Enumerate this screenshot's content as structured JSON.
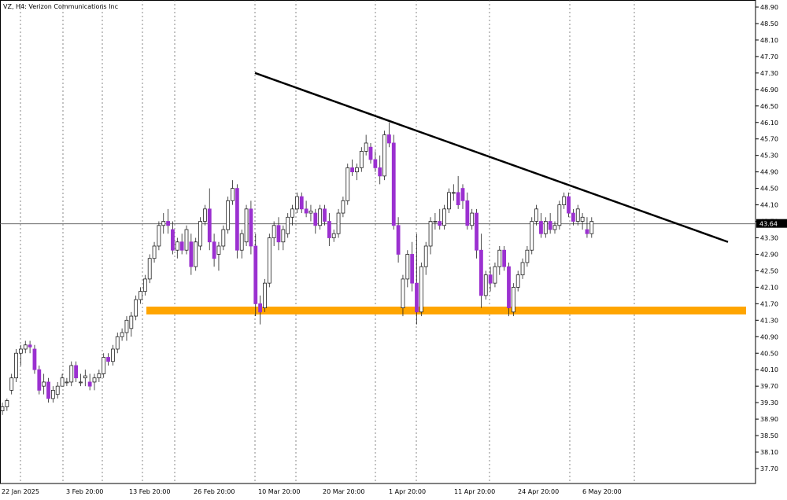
{
  "chart_data": {
    "type": "candlestick",
    "title": "VZ, H4:  Verizon Communications Inc",
    "current_price": "43.64",
    "y_ticks": [
      "48.90",
      "48.50",
      "48.10",
      "47.70",
      "47.30",
      "46.90",
      "46.50",
      "46.10",
      "45.70",
      "45.30",
      "44.90",
      "44.50",
      "44.10",
      "43.70",
      "43.30",
      "42.90",
      "42.50",
      "42.10",
      "41.70",
      "41.30",
      "40.90",
      "40.50",
      "40.10",
      "39.70",
      "39.30",
      "38.90",
      "38.50",
      "38.10",
      "37.70"
    ],
    "x_ticks": [
      "22 Jan 2025",
      "3 Feb 20:00",
      "13 Feb 20:00",
      "26 Feb 20:00",
      "10 Mar 20:00",
      "20 Mar 20:00",
      "1 Apr 20:00",
      "11 Apr 20:00",
      "24 Apr 20:00",
      "6 May 20:00"
    ],
    "ylim": [
      37.45,
      49.05
    ],
    "grid": "vertical dotted",
    "colors": {
      "bull_fill": "#ffffff",
      "bear_fill": "#9b30d0",
      "outline": "#222222",
      "trendline": "#000000",
      "support_zone": "#ffa500",
      "price_line": "#555555",
      "price_label_bg": "#000000",
      "price_label_text": "#ffffff"
    },
    "trendline": {
      "start": [
        0,
        47.3
      ],
      "end": [
        0,
        43.2
      ]
    },
    "support_zone": {
      "low": 41.44,
      "high": 41.63
    },
    "candles": [
      [
        39.1,
        39.3,
        39.0,
        39.2
      ],
      [
        39.2,
        39.4,
        39.1,
        39.35
      ],
      [
        39.6,
        40.0,
        39.5,
        39.9
      ],
      [
        39.9,
        40.6,
        39.8,
        40.5
      ],
      [
        40.5,
        40.7,
        40.2,
        40.6
      ],
      [
        40.6,
        40.8,
        40.5,
        40.7
      ],
      [
        40.7,
        40.8,
        40.5,
        40.65
      ],
      [
        40.6,
        40.7,
        40.0,
        40.1
      ],
      [
        40.1,
        40.2,
        39.5,
        39.6
      ],
      [
        39.7,
        40.0,
        39.5,
        39.8
      ],
      [
        39.8,
        39.9,
        39.3,
        39.4
      ],
      [
        39.4,
        39.7,
        39.3,
        39.6
      ],
      [
        39.5,
        39.8,
        39.4,
        39.7
      ],
      [
        39.7,
        40.0,
        39.7,
        39.9
      ],
      [
        39.8,
        39.9,
        39.7,
        39.8
      ],
      [
        39.8,
        40.3,
        39.7,
        40.2
      ],
      [
        40.2,
        40.3,
        39.8,
        39.9
      ],
      [
        39.8,
        40.0,
        39.7,
        39.8
      ],
      [
        39.9,
        40.1,
        39.7,
        39.95
      ],
      [
        39.8,
        40.0,
        39.6,
        39.7
      ],
      [
        39.8,
        40.0,
        39.6,
        39.9
      ],
      [
        39.9,
        40.1,
        39.8,
        40.0
      ],
      [
        40.0,
        40.5,
        39.9,
        40.4
      ],
      [
        40.4,
        40.5,
        40.2,
        40.3
      ],
      [
        40.3,
        40.7,
        40.2,
        40.6
      ],
      [
        40.6,
        41.0,
        40.5,
        40.9
      ],
      [
        40.9,
        41.1,
        40.8,
        41.0
      ],
      [
        41.0,
        41.4,
        40.8,
        41.3
      ],
      [
        41.1,
        41.5,
        40.9,
        41.4
      ],
      [
        41.4,
        41.9,
        41.3,
        41.8
      ],
      [
        41.8,
        42.1,
        41.7,
        42.0
      ],
      [
        42.0,
        42.4,
        41.9,
        42.3
      ],
      [
        42.3,
        42.9,
        42.2,
        42.8
      ],
      [
        42.8,
        43.2,
        42.7,
        43.1
      ],
      [
        43.1,
        43.7,
        43.0,
        43.6
      ],
      [
        43.6,
        43.9,
        43.4,
        43.7
      ],
      [
        43.7,
        44.0,
        43.4,
        43.6
      ],
      [
        43.5,
        43.7,
        42.9,
        43.0
      ],
      [
        43.0,
        43.3,
        42.8,
        43.2
      ],
      [
        43.2,
        43.4,
        42.9,
        43.0
      ],
      [
        43.0,
        43.6,
        42.9,
        43.5
      ],
      [
        43.2,
        43.4,
        42.4,
        42.6
      ],
      [
        42.6,
        43.3,
        42.5,
        43.2
      ],
      [
        43.1,
        43.8,
        43.0,
        43.7
      ],
      [
        43.7,
        44.1,
        43.6,
        44.0
      ],
      [
        44.0,
        44.5,
        43.0,
        43.2
      ],
      [
        43.2,
        43.4,
        42.6,
        42.8
      ],
      [
        42.9,
        43.2,
        42.5,
        43.1
      ],
      [
        43.1,
        43.6,
        43.0,
        43.5
      ],
      [
        43.5,
        44.3,
        43.4,
        44.2
      ],
      [
        44.2,
        44.7,
        44.1,
        44.5
      ],
      [
        44.5,
        44.6,
        42.8,
        43.0
      ],
      [
        43.0,
        43.5,
        42.8,
        43.4
      ],
      [
        43.2,
        44.1,
        43.1,
        44.0
      ],
      [
        44.0,
        44.2,
        42.9,
        43.1
      ],
      [
        43.1,
        43.4,
        41.4,
        41.7
      ],
      [
        41.7,
        41.9,
        41.2,
        41.5
      ],
      [
        41.6,
        42.3,
        41.5,
        42.2
      ],
      [
        42.2,
        43.4,
        42.1,
        43.3
      ],
      [
        43.3,
        43.7,
        43.1,
        43.6
      ],
      [
        43.6,
        43.8,
        43.0,
        43.2
      ],
      [
        43.2,
        43.6,
        43.0,
        43.5
      ],
      [
        43.4,
        43.9,
        43.3,
        43.8
      ],
      [
        43.8,
        44.1,
        43.6,
        44.0
      ],
      [
        44.0,
        44.4,
        43.9,
        44.3
      ],
      [
        44.3,
        44.4,
        43.9,
        44.0
      ],
      [
        44.0,
        44.2,
        43.8,
        43.9
      ],
      [
        43.9,
        44.1,
        43.7,
        43.95
      ],
      [
        43.9,
        44.0,
        43.4,
        43.6
      ],
      [
        43.6,
        44.1,
        43.5,
        44.0
      ],
      [
        44.0,
        44.1,
        43.6,
        43.7
      ],
      [
        43.7,
        43.9,
        43.1,
        43.3
      ],
      [
        43.3,
        43.5,
        43.2,
        43.4
      ],
      [
        43.4,
        44.0,
        43.3,
        43.9
      ],
      [
        43.9,
        44.3,
        43.8,
        44.2
      ],
      [
        44.2,
        45.1,
        44.1,
        45.0
      ],
      [
        45.0,
        45.2,
        44.8,
        44.9
      ],
      [
        44.9,
        45.1,
        44.7,
        45.0
      ],
      [
        45.0,
        45.5,
        44.9,
        45.4
      ],
      [
        45.4,
        45.8,
        45.3,
        45.6
      ],
      [
        45.5,
        45.6,
        45.1,
        45.2
      ],
      [
        45.2,
        45.4,
        44.9,
        45.0
      ],
      [
        45.0,
        45.3,
        44.6,
        44.8
      ],
      [
        44.8,
        45.9,
        44.7,
        45.8
      ],
      [
        45.8,
        46.1,
        45.5,
        45.6
      ],
      [
        45.6,
        45.8,
        43.5,
        43.6
      ],
      [
        43.6,
        43.8,
        42.7,
        42.9
      ],
      [
        41.6,
        42.4,
        41.4,
        42.3
      ],
      [
        42.3,
        43.0,
        42.1,
        42.9
      ],
      [
        42.9,
        43.2,
        42.0,
        42.2
      ],
      [
        42.2,
        43.4,
        41.2,
        41.5
      ],
      [
        41.5,
        42.7,
        41.4,
        42.6
      ],
      [
        42.6,
        43.2,
        42.4,
        43.1
      ],
      [
        43.1,
        43.8,
        42.9,
        43.7
      ],
      [
        43.7,
        43.9,
        43.5,
        43.7
      ],
      [
        43.7,
        44.0,
        43.5,
        43.6
      ],
      [
        43.6,
        44.1,
        43.5,
        44.0
      ],
      [
        44.0,
        44.5,
        43.9,
        44.4
      ],
      [
        44.4,
        44.6,
        44.2,
        44.4
      ],
      [
        44.4,
        44.8,
        44.0,
        44.1
      ],
      [
        44.5,
        44.6,
        44.0,
        44.2
      ],
      [
        44.2,
        44.4,
        43.5,
        43.6
      ],
      [
        43.6,
        44.0,
        43.5,
        43.9
      ],
      [
        43.9,
        44.0,
        42.8,
        43.0
      ],
      [
        43.0,
        43.4,
        41.6,
        41.9
      ],
      [
        41.9,
        42.5,
        41.8,
        42.4
      ],
      [
        42.4,
        42.6,
        42.0,
        42.2
      ],
      [
        42.2,
        42.7,
        42.1,
        42.6
      ],
      [
        42.6,
        43.1,
        42.4,
        43.0
      ],
      [
        43.0,
        43.1,
        42.5,
        42.6
      ],
      [
        42.6,
        42.7,
        41.4,
        41.6
      ],
      [
        41.5,
        42.2,
        41.4,
        42.1
      ],
      [
        42.1,
        42.5,
        42.0,
        42.4
      ],
      [
        42.4,
        42.8,
        42.3,
        42.7
      ],
      [
        42.7,
        43.1,
        42.6,
        43.0
      ],
      [
        43.0,
        43.8,
        42.9,
        43.7
      ],
      [
        43.7,
        44.1,
        43.6,
        44.0
      ],
      [
        43.7,
        43.9,
        43.3,
        43.4
      ],
      [
        43.4,
        43.8,
        43.3,
        43.7
      ],
      [
        43.7,
        43.9,
        43.4,
        43.5
      ],
      [
        43.5,
        43.7,
        43.4,
        43.6
      ],
      [
        43.6,
        44.2,
        43.5,
        44.1
      ],
      [
        44.1,
        44.4,
        44.0,
        44.3
      ],
      [
        44.3,
        44.4,
        43.8,
        43.9
      ],
      [
        43.9,
        44.0,
        43.6,
        43.7
      ],
      [
        43.7,
        44.1,
        43.6,
        44.0
      ],
      [
        43.7,
        43.9,
        43.5,
        43.8
      ],
      [
        43.5,
        43.8,
        43.3,
        43.4
      ],
      [
        43.4,
        43.8,
        43.3,
        43.7
      ]
    ]
  }
}
